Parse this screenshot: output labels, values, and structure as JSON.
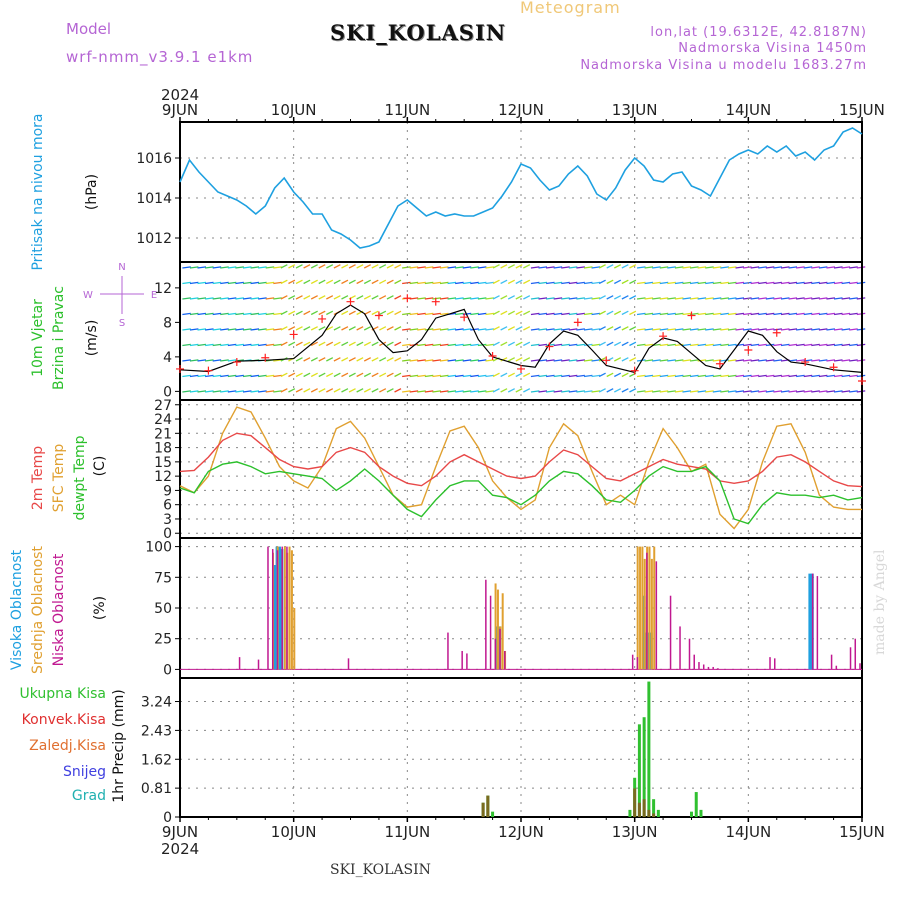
{
  "header": {
    "model_label": "Model",
    "model_name": "wrf-nmm_v3.9.1 e1km",
    "station": "SKI_KOLASIN",
    "title": "Meteogram",
    "lonlat": "lon,lat (19.6312E, 42.8187N)",
    "altitude": "Nadmorska Visina 1450m",
    "model_altitude": "Nadmorska Visina u modelu 1683.27m"
  },
  "footer": {
    "station": "SKI_KOLASIN",
    "credit": "made by Angel"
  },
  "axis": {
    "year": "2024",
    "days": [
      "9JUN",
      "10JUN",
      "11JUN",
      "12JUN",
      "13JUN",
      "14JUN",
      "15JUN"
    ]
  },
  "colors": {
    "pressure": "#1ea0e0",
    "temp2m": "#e84848",
    "sfc": "#e0a030",
    "dewpt": "#2cc02c",
    "high": "#1ea0e0",
    "mid": "#e0a030",
    "low": "#c01890",
    "precip": "#30c030",
    "convek": "#e03030",
    "zaledj": "#e07030",
    "snow": "#4040e0",
    "grad": "#20b0b0",
    "arrow_cold": "#7020c0",
    "arrow_warm": "#f04020",
    "windspeed": "#000000",
    "gust": "#ff2020"
  },
  "panels": {
    "pressure": {
      "labels": [
        "Pritisak na nivou mora",
        "(hPa)"
      ],
      "ticks": [
        "1016",
        "1014",
        "1012"
      ]
    },
    "wind": {
      "labels": [
        "10m Vjetar",
        "Brzina i Pravac",
        "(m/s)"
      ],
      "compass": [
        "N",
        "W",
        "E",
        "S"
      ],
      "ticks": [
        "12",
        "8",
        "4",
        "0"
      ]
    },
    "temp": {
      "labels": [
        "2m Temp",
        "SFC Temp",
        "dewpt Temp",
        "(C)"
      ],
      "ticks": [
        "27",
        "24",
        "21",
        "18",
        "15",
        "12",
        "9",
        "6",
        "3",
        "0"
      ]
    },
    "cloud": {
      "labels": [
        "Visoka Oblacnost",
        "Srednja Oblacnost",
        "Niska Oblacnost",
        "(%)"
      ],
      "ticks": [
        "100",
        "75",
        "50",
        "25",
        "0"
      ]
    },
    "precip": {
      "labels": [
        "Ukupna Kisa",
        "Konvek.Kisa",
        "Zaledj.Kisa",
        "Snijeg",
        "Grad",
        "1hr Precip (mm)"
      ],
      "ticks": [
        "3.24",
        "2.43",
        "1.62",
        "0.81",
        "0"
      ]
    }
  },
  "chart_data": [
    {
      "type": "line",
      "title": "Pritisak na nivou mora",
      "ylabel": "(hPa)",
      "ylim": [
        1010.8,
        1017.8
      ],
      "x_hours_from_9JUN_00": [
        0,
        2,
        4,
        6,
        8,
        10,
        12,
        14,
        16,
        18,
        20,
        22,
        24,
        26,
        28,
        30,
        32,
        34,
        36,
        38,
        40,
        42,
        44,
        46,
        48,
        50,
        52,
        54,
        56,
        58,
        60,
        62,
        64,
        66,
        68,
        70,
        72,
        74,
        76,
        78,
        80,
        82,
        84,
        86,
        88,
        90,
        92,
        94,
        96,
        98,
        100,
        102,
        104,
        106,
        108,
        110,
        112,
        114,
        116,
        118,
        120,
        122,
        124,
        126,
        128,
        130,
        132,
        134,
        136,
        138,
        140,
        142,
        144
      ],
      "values": [
        1014.8,
        1015.9,
        1015.3,
        1014.8,
        1014.3,
        1014.1,
        1013.9,
        1013.6,
        1013.2,
        1013.6,
        1014.5,
        1015,
        1014.3,
        1013.8,
        1013.2,
        1013.2,
        1012.4,
        1012.2,
        1011.9,
        1011.5,
        1011.6,
        1011.8,
        1012.7,
        1013.6,
        1013.9,
        1013.5,
        1013.1,
        1013.3,
        1013.1,
        1013.2,
        1013.1,
        1013.1,
        1013.3,
        1013.5,
        1014.1,
        1014.8,
        1015.7,
        1015.5,
        1014.9,
        1014.4,
        1014.6,
        1015.2,
        1015.6,
        1015.1,
        1014.2,
        1013.9,
        1014.5,
        1015.4,
        1016,
        1015.6,
        1014.9,
        1014.8,
        1015.2,
        1015.3,
        1014.6,
        1014.4,
        1014.1,
        1015,
        1015.9,
        1016.2,
        1016.4,
        1016.2,
        1016.6,
        1016.3,
        1016.6,
        1016.1,
        1016.3,
        1015.9,
        1016.4,
        1016.6,
        1017.3,
        1017.5,
        1017.2
      ]
    },
    {
      "type": "line",
      "title": "10m Vjetar Brzina i Pravac",
      "ylabel": "(m/s)",
      "ylim": [
        -1,
        15
      ],
      "series": [
        {
          "name": "Brzina",
          "x_hours_from_9JUN_00": [
            0,
            6,
            12,
            18,
            24,
            30,
            33,
            36,
            39,
            42,
            45,
            48,
            51,
            54,
            57,
            60,
            63,
            66,
            69,
            72,
            75,
            78,
            81,
            84,
            87,
            90,
            96,
            99,
            102,
            105,
            108,
            111,
            114,
            117,
            120,
            123,
            126,
            129,
            132,
            138,
            144
          ],
          "values": [
            2.5,
            2.3,
            3.5,
            3.6,
            3.8,
            6.5,
            9,
            10,
            9,
            6,
            4.5,
            4.7,
            6,
            8.5,
            9,
            9.5,
            6,
            4,
            3.5,
            3,
            2.8,
            5.5,
            7,
            6.5,
            4.8,
            3,
            2.2,
            5,
            6.2,
            5.8,
            4.4,
            3,
            2.6,
            4.8,
            7,
            6.5,
            4.6,
            3.4,
            3.2,
            2.5,
            2.2
          ]
        },
        {
          "name": "Udari",
          "x_hours_from_9JUN_00": [
            0,
            6,
            12,
            18,
            24,
            30,
            36,
            42,
            48,
            54,
            60,
            66,
            72,
            78,
            84,
            90,
            96,
            102,
            108,
            114,
            120,
            126,
            132,
            138,
            144
          ],
          "values": [
            2.6,
            2.4,
            3.4,
            3.9,
            6.6,
            8.4,
            10.4,
            8.8,
            10.8,
            10.4,
            8.6,
            4.1,
            2.6,
            5.2,
            8,
            3.6,
            2.4,
            6.4,
            8.8,
            3.2,
            4.8,
            6.8,
            3.4,
            2.8,
            1.2
          ]
        }
      ]
    },
    {
      "type": "line",
      "title": "2m Temp / SFC Temp / dewpt Temp",
      "ylabel": "(C)",
      "ylim": [
        -1,
        28
      ],
      "series": [
        {
          "name": "2m Temp",
          "x_hours_from_9JUN_00": [
            0,
            3,
            6,
            9,
            12,
            15,
            18,
            21,
            24,
            27,
            30,
            33,
            36,
            39,
            42,
            45,
            48,
            51,
            54,
            57,
            60,
            63,
            66,
            69,
            72,
            75,
            78,
            81,
            84,
            87,
            90,
            93,
            96,
            99,
            102,
            105,
            108,
            111,
            114,
            117,
            120,
            123,
            126,
            129,
            132,
            135,
            138,
            141,
            144
          ],
          "values": [
            13,
            13.2,
            16,
            19.5,
            21,
            20.5,
            18,
            15.5,
            14,
            13.5,
            14,
            17,
            18,
            17,
            14,
            12,
            10.5,
            10,
            12,
            15,
            16.5,
            15,
            13.5,
            12,
            11.5,
            12,
            15,
            17.5,
            16.5,
            14,
            11.5,
            11,
            12.5,
            14,
            15.5,
            14.5,
            14,
            13.5,
            11,
            10.5,
            11,
            13,
            16,
            16.5,
            15,
            13,
            11,
            10,
            9.8
          ]
        },
        {
          "name": "SFC Temp",
          "x_hours_from_9JUN_00": [
            0,
            3,
            6,
            9,
            12,
            15,
            18,
            21,
            24,
            27,
            30,
            33,
            36,
            39,
            42,
            45,
            48,
            51,
            54,
            57,
            60,
            63,
            66,
            69,
            72,
            75,
            78,
            81,
            84,
            87,
            90,
            93,
            96,
            99,
            102,
            105,
            108,
            111,
            114,
            117,
            120,
            123,
            126,
            129,
            132,
            135,
            138,
            141,
            144
          ],
          "values": [
            10,
            8.5,
            12,
            21,
            26.5,
            25.5,
            20,
            14,
            11,
            9.5,
            14,
            22,
            23.5,
            20,
            14,
            8,
            5.5,
            6,
            14,
            21.5,
            22.5,
            18,
            11,
            7.5,
            5,
            7,
            18,
            23,
            20.5,
            13,
            6,
            8,
            6,
            15,
            22,
            18,
            13,
            14.5,
            4,
            1,
            5,
            15,
            22.5,
            23,
            17,
            8,
            5.5,
            5,
            5
          ]
        },
        {
          "name": "dewpt Temp",
          "x_hours_from_9JUN_00": [
            0,
            3,
            6,
            9,
            12,
            15,
            18,
            21,
            24,
            27,
            30,
            33,
            36,
            39,
            42,
            45,
            48,
            51,
            54,
            57,
            60,
            63,
            66,
            69,
            72,
            75,
            78,
            81,
            84,
            87,
            90,
            93,
            96,
            99,
            102,
            105,
            108,
            111,
            114,
            117,
            120,
            123,
            126,
            129,
            132,
            135,
            138,
            141,
            144
          ],
          "values": [
            9.5,
            8.5,
            13,
            14.5,
            15,
            14,
            12.5,
            13,
            12.5,
            12,
            11.5,
            9,
            11,
            13.5,
            11,
            8,
            5,
            3.5,
            7,
            10,
            11,
            11,
            8,
            7.5,
            6,
            8,
            11,
            13,
            12.5,
            10,
            7,
            6.5,
            9,
            12,
            14,
            13,
            13,
            14,
            11,
            3,
            2,
            6,
            8.5,
            8,
            8,
            7.5,
            8,
            7,
            7.5
          ]
        }
      ]
    },
    {
      "type": "bar",
      "title": "Oblacnost",
      "ylabel": "(%)",
      "ylim": [
        0,
        100
      ],
      "series": [
        {
          "name": "Visoka Oblacnost",
          "x_hours_from_9JUN_00": [
            20,
            20.5,
            21,
            21.5,
            67,
            67.5,
            98,
            98.5,
            99,
            99.5,
            133,
            133.5
          ],
          "values": [
            85,
            100,
            100,
            98,
            35,
            35,
            60,
            30,
            30,
            30,
            78,
            78
          ]
        },
        {
          "name": "Srednja Oblacnost",
          "x_hours_from_9JUN_00": [
            19,
            20,
            21.5,
            22,
            22.5,
            23,
            23.5,
            66,
            66.5,
            67,
            67.5,
            68,
            96,
            96.5,
            97,
            97.5,
            98,
            98.5,
            99,
            99.5
          ],
          "values": [
            95,
            100,
            100,
            95,
            100,
            97,
            50,
            70,
            65,
            35,
            62,
            15,
            100,
            100,
            100,
            90,
            100,
            100,
            90,
            100
          ]
        },
        {
          "name": "Niska Oblacnost",
          "x_hours_from_9JUN_00": [
            13,
            17,
            19,
            20,
            21,
            22,
            23,
            36,
            57,
            60,
            61,
            65,
            66,
            67,
            68,
            69,
            96,
            97,
            99,
            101,
            104,
            106,
            108,
            109,
            110,
            111,
            112,
            113,
            114,
            125,
            126,
            134,
            135,
            138,
            139,
            142,
            143,
            144
          ],
          "values": [
            10,
            8,
            100,
            98,
            97,
            100,
            100,
            9,
            30,
            15,
            13,
            73,
            60,
            25,
            33,
            15,
            12,
            10,
            95,
            88,
            60,
            35,
            25,
            12,
            6,
            4,
            2,
            2,
            1,
            10,
            9,
            78,
            76,
            12,
            3,
            18,
            25,
            5
          ]
        }
      ]
    },
    {
      "type": "bar",
      "title": "1hr Precip",
      "ylabel": "1hr Precip (mm)",
      "ylim": [
        0,
        3.9
      ],
      "series": [
        {
          "name": "Ukupna Kisa",
          "x_hours_from_9JUN_00": [
            64,
            65,
            66,
            95,
            96,
            97,
            98,
            99,
            100,
            101,
            108,
            109,
            110
          ],
          "values": [
            0.4,
            0.6,
            0.15,
            0.2,
            1.1,
            2.6,
            2.8,
            3.8,
            0.5,
            0.2,
            0.15,
            0.7,
            0.2
          ]
        },
        {
          "name": "Konvek.Kisa",
          "x_hours_from_9JUN_00": [
            64,
            65,
            96,
            97,
            98,
            99,
            100
          ],
          "values": [
            0.4,
            0.6,
            0.8,
            0.4,
            0.5,
            0.2,
            0.1
          ]
        },
        {
          "name": "Zaledj.Kisa",
          "x_hours_from_9JUN_00": [],
          "values": []
        },
        {
          "name": "Snijeg",
          "x_hours_from_9JUN_00": [],
          "values": []
        },
        {
          "name": "Grad",
          "x_hours_from_9JUN_00": [],
          "values": []
        }
      ]
    }
  ]
}
